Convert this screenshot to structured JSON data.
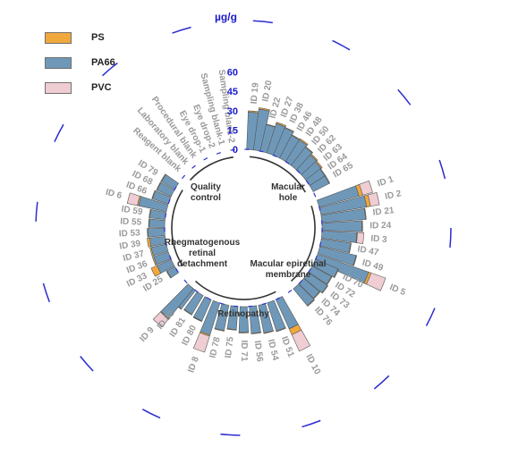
{
  "chart_data": {
    "type": "radial stacked bar",
    "unit": "µg/g",
    "radial_ticks": [
      "0",
      "15",
      "30",
      "45",
      "60"
    ],
    "ylim": [
      0,
      60
    ],
    "colors": {
      "PS": "#f0a83c",
      "PA66": "#6f98b8",
      "PVC": "#efcdd2"
    },
    "legend": [
      {
        "name": "PS",
        "color": "#f0a83c"
      },
      {
        "name": "PA66",
        "color": "#6f98b8"
      },
      {
        "name": "PVC",
        "color": "#efcdd2"
      }
    ],
    "groups": [
      "Quality control",
      "Macular hole",
      "Macular epiretinal membrane",
      "Retinopathy",
      "Rhegmatogenous retinal detachment"
    ],
    "categories": [
      "ID 19",
      "ID 20",
      "ID 22",
      "ID 27",
      "ID 38",
      "ID 46",
      "ID 48",
      "ID 50",
      "ID 62",
      "ID 63",
      "ID 64",
      "ID 65",
      "ID 1",
      "ID 2",
      "ID 21",
      "ID 24",
      "ID 3",
      "ID 47",
      "ID 49",
      "ID 5",
      "ID 70",
      "ID 72",
      "ID 73",
      "ID 74",
      "ID 76",
      "ID 10",
      "ID 51",
      "ID 54",
      "ID 56",
      "ID 71",
      "ID 75",
      "ID 78",
      "ID 8",
      "ID 80",
      "ID 81",
      "ID 82",
      "ID 9",
      "ID 25",
      "ID 33",
      "ID 36",
      "ID 37",
      "ID 39",
      "ID 53",
      "ID 55",
      "ID 59",
      "ID 6",
      "ID 66",
      "ID 68",
      "ID 79",
      "Reagent blank",
      "Laboratory blank",
      "Procedural blank",
      "Eye drop-1",
      "Eye drop-2",
      "Sampling blank-1",
      "Sampling blank-2"
    ],
    "series": [
      {
        "name": "PS",
        "values": [
          1,
          1,
          0.5,
          1,
          0.5,
          0.5,
          1,
          0.5,
          1,
          1,
          0.5,
          0.5,
          3,
          3,
          0.5,
          0.5,
          0.5,
          0.5,
          0.5,
          2,
          0.5,
          0.5,
          0.5,
          0.5,
          0.5,
          5,
          0.5,
          0.5,
          0.5,
          0.5,
          0.5,
          0.5,
          1,
          0.5,
          0.5,
          0.5,
          0.5,
          0.5,
          5,
          1,
          1,
          2,
          0.5,
          0.5,
          0.5,
          1,
          0.5,
          0.5,
          0.5,
          0,
          0,
          0,
          0,
          0,
          0,
          0
        ]
      },
      {
        "name": "PA66",
        "values": [
          29,
          32,
          21,
          24,
          23,
          20,
          20,
          18,
          16,
          15,
          14,
          14,
          32,
          36,
          34,
          31,
          27,
          23,
          29,
          42,
          19,
          17,
          18,
          16,
          17,
          25,
          23,
          22,
          21,
          20,
          18,
          20,
          26,
          18,
          17,
          18,
          30,
          7,
          12,
          12,
          12,
          12,
          13,
          12,
          12,
          22,
          13,
          12,
          12,
          0,
          0,
          0,
          0,
          0,
          0,
          0
        ]
      },
      {
        "name": "PVC",
        "values": [
          0,
          0,
          0,
          0,
          0,
          0,
          0,
          0,
          0,
          0,
          0,
          0,
          8,
          7,
          0,
          0,
          5,
          0,
          0,
          12,
          0,
          0,
          0,
          0,
          0,
          14,
          0,
          0,
          0,
          0,
          0,
          0,
          13,
          0,
          0,
          0,
          8,
          0,
          0,
          0,
          0,
          0,
          0,
          0,
          0,
          8,
          0,
          0,
          0,
          0,
          0,
          0,
          0,
          0,
          0,
          0
        ]
      }
    ]
  }
}
